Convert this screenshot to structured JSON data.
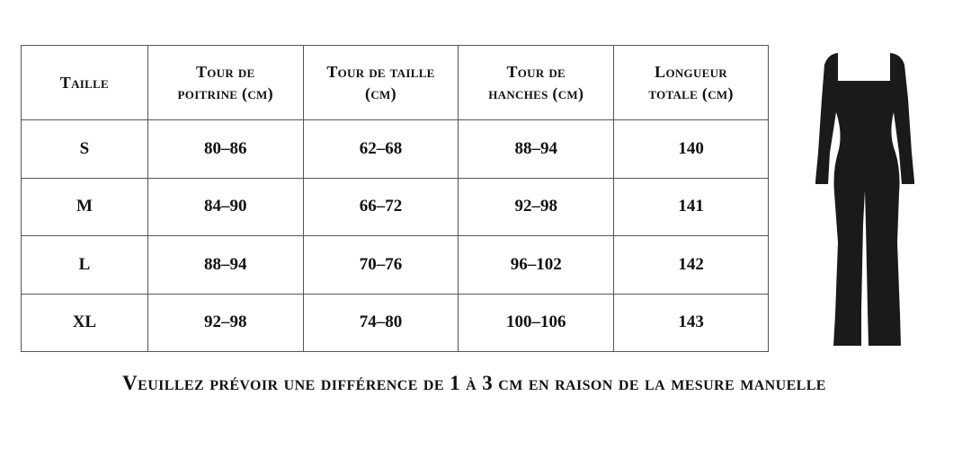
{
  "table": {
    "headers": [
      "Taille",
      "Tour de poitrine (cm)",
      "Tour de taille (cm)",
      "Tour de hanches (cm)",
      "Longueur totale (cm)"
    ],
    "header_lines": [
      [
        "Taille"
      ],
      [
        "Tour de",
        "poitrine (cm)"
      ],
      [
        "Tour de taille",
        "(cm)"
      ],
      [
        "Tour de",
        "hanches (cm)"
      ],
      [
        "Longueur",
        "totale (cm)"
      ]
    ],
    "rows": [
      [
        "S",
        "80–86",
        "62–68",
        "88–94",
        "140"
      ],
      [
        "M",
        "84–90",
        "66–72",
        "92–98",
        "141"
      ],
      [
        "L",
        "88–94",
        "70–76",
        "96–102",
        "142"
      ],
      [
        "XL",
        "92–98",
        "74–80",
        "100–106",
        "143"
      ]
    ]
  },
  "note": "Veuillez prévoir une différence de 1 à 3 cm en raison de la mesure manuelle",
  "product_image": {
    "icon": "black-long-sleeve-jumpsuit",
    "color": "#1a1a1a"
  }
}
